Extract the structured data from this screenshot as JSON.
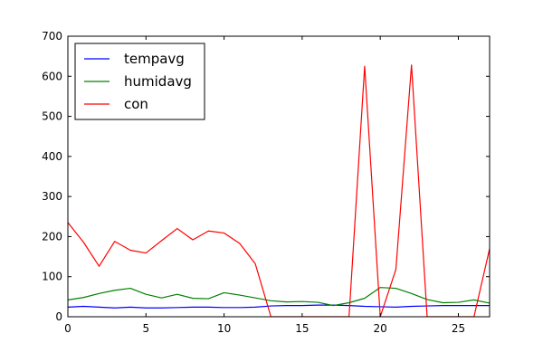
{
  "chart_data": {
    "type": "line",
    "title": "",
    "xlabel": "",
    "ylabel": "",
    "xlim": [
      0,
      27
    ],
    "ylim": [
      0,
      700
    ],
    "x_ticks": [
      0,
      5,
      10,
      15,
      20,
      25
    ],
    "y_ticks": [
      0,
      100,
      200,
      300,
      400,
      500,
      600,
      700
    ],
    "grid": false,
    "legend_position": "top-left",
    "x": [
      0,
      1,
      2,
      3,
      4,
      5,
      6,
      7,
      8,
      9,
      10,
      11,
      12,
      13,
      14,
      15,
      16,
      17,
      18,
      19,
      20,
      21,
      22,
      23,
      24,
      25,
      26,
      27
    ],
    "series": [
      {
        "name": "tempavg",
        "color": "#0000ff",
        "values": [
          24,
          26,
          24,
          22,
          24,
          22,
          22,
          23,
          24,
          24,
          23,
          23,
          24,
          27,
          28,
          28,
          29,
          29,
          28,
          26,
          25,
          24,
          26,
          27,
          28,
          28,
          28,
          28
        ]
      },
      {
        "name": "humidavg",
        "color": "#008000",
        "values": [
          42,
          48,
          58,
          66,
          71,
          56,
          47,
          56,
          46,
          45,
          60,
          54,
          47,
          40,
          37,
          38,
          36,
          28,
          35,
          46,
          73,
          71,
          58,
          43,
          35,
          36,
          42,
          34
        ]
      },
      {
        "name": "con",
        "color": "#ff0000",
        "values": [
          235,
          186,
          126,
          188,
          166,
          159,
          190,
          220,
          192,
          214,
          209,
          183,
          132,
          0,
          0,
          0,
          0,
          0,
          0,
          625,
          0,
          118,
          628,
          0,
          0,
          0,
          0,
          170
        ]
      }
    ]
  }
}
